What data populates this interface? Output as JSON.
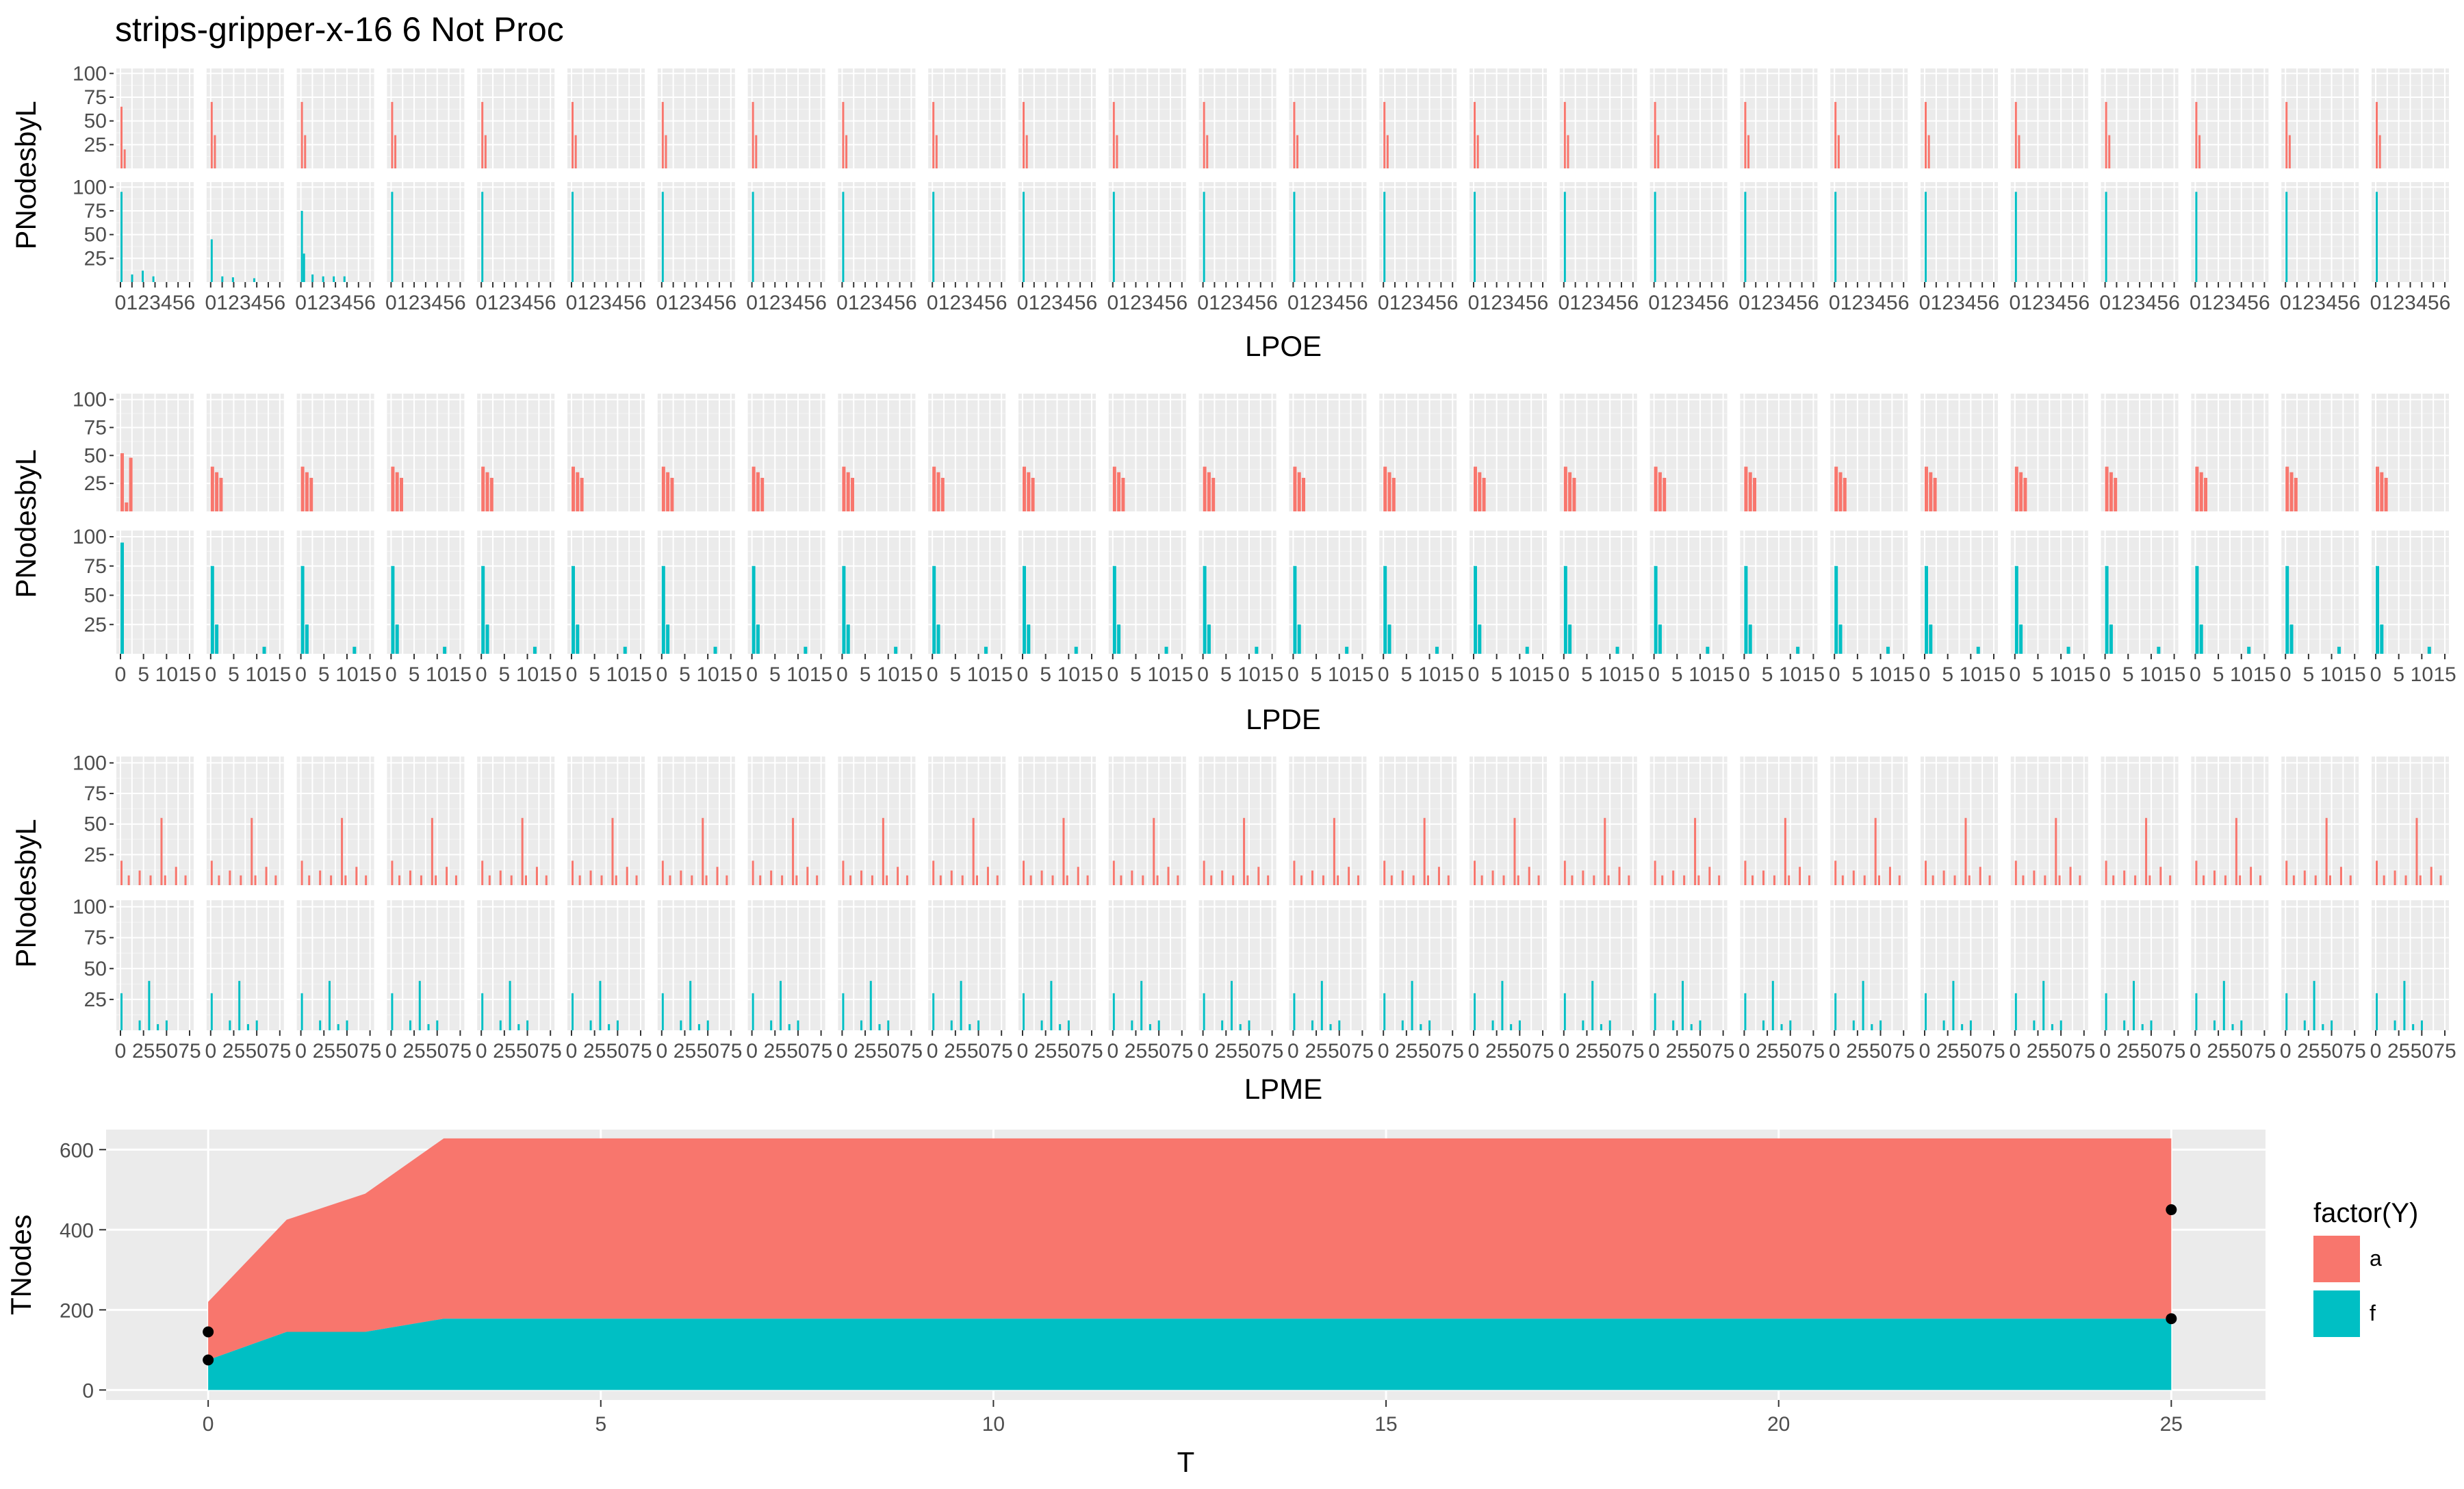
{
  "title": "strips-gripper-x-16 6 Not Proc",
  "colors": {
    "a": "#F8766D",
    "f": "#00BFC4",
    "panel_bg": "#EBEBEB",
    "grid_major": "#FFFFFF",
    "grid_minor": "#F5F5F5",
    "text": "#000000",
    "tick_text": "#4D4D4D"
  },
  "chart_data": [
    {
      "type": "bar",
      "facets": 26,
      "xlabel": "LPOE",
      "ylabel": "PNodesbyL",
      "ylim": [
        0,
        100
      ],
      "yticks": [
        "25",
        "50",
        "75",
        "100"
      ],
      "xtick_text": "0 1 2 3 4 5 6",
      "rows": [
        "a",
        "f"
      ],
      "series": [
        {
          "name": "a",
          "values_first": [
            [
              0,
              65
            ],
            [
              0.3,
              20
            ]
          ],
          "values_rest": [
            [
              0,
              70
            ],
            [
              0.3,
              35
            ]
          ]
        },
        {
          "name": "f",
          "values_first": [
            [
              0,
              95
            ],
            [
              1,
              8
            ],
            [
              2,
              12
            ],
            [
              3,
              6
            ]
          ],
          "values_facet2": [
            [
              0,
              45
            ],
            [
              1,
              6
            ],
            [
              2,
              5
            ],
            [
              4,
              4
            ]
          ],
          "values_facet3": [
            [
              0,
              75
            ],
            [
              0.2,
              30
            ],
            [
              1,
              8
            ],
            [
              2,
              6
            ],
            [
              3,
              6
            ],
            [
              4,
              6
            ]
          ],
          "values_rest": [
            [
              0,
              95
            ]
          ]
        }
      ]
    },
    {
      "type": "bar",
      "facets": 26,
      "xlabel": "LPDE",
      "ylabel": "PNodesbyL",
      "ylim": [
        0,
        100
      ],
      "yticks": [
        "25",
        "50",
        "75",
        "100"
      ],
      "xticks": [
        "0",
        "5",
        "10",
        "15"
      ],
      "rows": [
        "a",
        "f"
      ],
      "series": [
        {
          "name": "a",
          "values_first": [
            [
              0,
              52
            ],
            [
              1,
              8
            ],
            [
              2,
              48
            ]
          ],
          "values_rest": [
            [
              0,
              40
            ],
            [
              1,
              35
            ],
            [
              2,
              30
            ]
          ]
        },
        {
          "name": "f",
          "values_first": [
            [
              0,
              95
            ]
          ],
          "values_rest": [
            [
              0,
              75
            ],
            [
              1,
              25
            ],
            [
              12,
              6
            ]
          ]
        }
      ]
    },
    {
      "type": "bar",
      "facets": 26,
      "xlabel": "LPME",
      "ylabel": "PNodesbyL",
      "ylim": [
        0,
        100
      ],
      "yticks": [
        "25",
        "50",
        "75",
        "100"
      ],
      "xticks": [
        "0",
        "25",
        "50",
        "75"
      ],
      "rows": [
        "a",
        "f"
      ],
      "series": [
        {
          "name": "a",
          "values": [
            [
              0,
              20
            ],
            [
              10,
              8
            ],
            [
              25,
              12
            ],
            [
              40,
              8
            ],
            [
              55,
              55
            ],
            [
              60,
              8
            ],
            [
              75,
              15
            ],
            [
              88,
              8
            ]
          ]
        },
        {
          "name": "f",
          "values": [
            [
              0,
              30
            ],
            [
              25,
              8
            ],
            [
              38,
              40
            ],
            [
              50,
              5
            ],
            [
              62,
              8
            ]
          ]
        }
      ]
    },
    {
      "type": "area",
      "xlabel": "T",
      "ylabel": "TNodes",
      "xlim": [
        -1.3,
        26.2
      ],
      "ylim": [
        -25,
        650
      ],
      "xticks": [
        0,
        5,
        10,
        15,
        20,
        25
      ],
      "yticks": [
        0,
        200,
        400,
        600
      ],
      "x": [
        0,
        1,
        2,
        3,
        25
      ],
      "series": [
        {
          "name": "f",
          "values": [
            75,
            145,
            145,
            178,
            178
          ]
        },
        {
          "name": "a",
          "values": [
            145,
            280,
            345,
            450,
            450
          ]
        }
      ],
      "points": [
        [
          0,
          75
        ],
        [
          0,
          145
        ],
        [
          25,
          178
        ],
        [
          25,
          450
        ]
      ],
      "legend": {
        "title": "factor(Y)",
        "position": "right",
        "items": [
          "a",
          "f"
        ]
      }
    }
  ]
}
